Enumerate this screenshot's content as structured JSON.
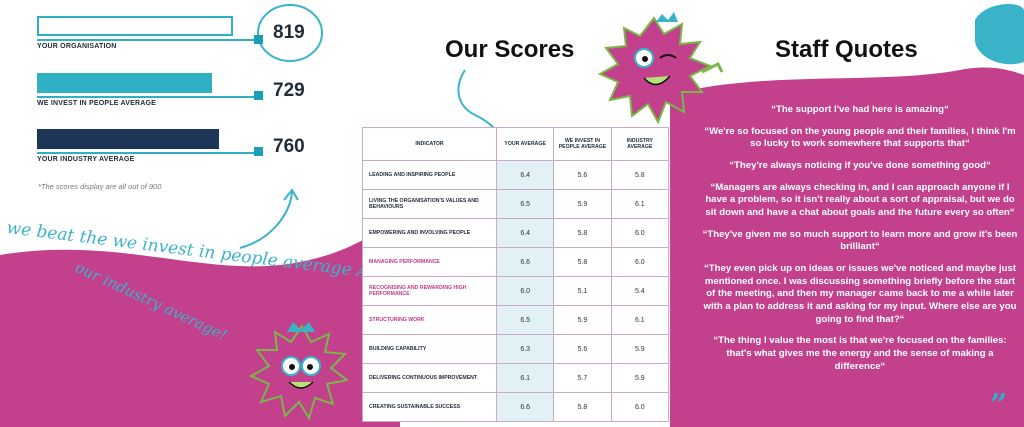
{
  "scores": {
    "items": [
      {
        "label": "YOUR ORGANISATION",
        "value": "819"
      },
      {
        "label": "WE INVEST IN PEOPLE AVERAGE",
        "value": "729"
      },
      {
        "label": "YOUR INDUSTRY AVERAGE",
        "value": "760"
      }
    ],
    "note": "*The scores display are all out of 900"
  },
  "script_text": {
    "line1": "we beat the we invest in people average AND",
    "line2": "our industry average!"
  },
  "our_scores": {
    "heading": "Our Scores",
    "columns": [
      "INDICATOR",
      "YOUR AVERAGE",
      "WE INVEST IN PEOPLE AVERAGE",
      "INDUSTRY AVERAGE"
    ],
    "rows": [
      {
        "indicator": "LEADING AND INSPIRING PEOPLE",
        "yours": "6.4",
        "wiip": "5.6",
        "industry": "5.8"
      },
      {
        "indicator": "LIVING THE ORGANISATION'S VALUES AND BEHAVIOURS",
        "yours": "6.5",
        "wiip": "5.9",
        "industry": "6.1"
      },
      {
        "indicator": "EMPOWERING AND INVOLVING PEOPLE",
        "yours": "6.4",
        "wiip": "5.8",
        "industry": "6.0"
      },
      {
        "indicator": "MANAGING PERFORMANCE",
        "yours": "6.6",
        "wiip": "5.8",
        "industry": "6.0"
      },
      {
        "indicator": "RECOGNISING AND REWARDING HIGH PERFORMANCE",
        "yours": "6.0",
        "wiip": "5.1",
        "industry": "5.4"
      },
      {
        "indicator": "STRUCTURING WORK",
        "yours": "6.5",
        "wiip": "5.9",
        "industry": "6.1"
      },
      {
        "indicator": "BUILDING CAPABILITY",
        "yours": "6.3",
        "wiip": "5.6",
        "industry": "5.9"
      },
      {
        "indicator": "DELIVERING CONTINUOUS IMPROVEMENT",
        "yours": "6.1",
        "wiip": "5.7",
        "industry": "5.9"
      },
      {
        "indicator": "CREATING SUSTAINABLE SUCCESS",
        "yours": "6.6",
        "wiip": "5.8",
        "industry": "6.0"
      }
    ]
  },
  "staff_quotes": {
    "heading": "Staff Quotes",
    "quotes": [
      "“The support I've had here is amazing“",
      "“We're so focused on the young people and their families, I think I'm so lucky to work somewhere that supports that“",
      "“They're always noticing if you've done something good“",
      "“Managers are always checking in, and I can approach anyone if I have a problem, so it isn't really about a sort of appraisal, but we do sit down and have a chat about goals and the future every so often“",
      "“They've given me so much support to learn more and grow it's been brilliant“",
      "“They even pick up on ideas or issues we've noticed and maybe just mentioned once. I was discussing something briefly before the start of the meeting, and then my manager came back to me a while later with a plan to address it and asking for my input. Where else are you going to find that?“",
      "“The thing I value the most is that we're focused on the families: that's what gives me the energy and the sense of making a difference“"
    ]
  },
  "colors": {
    "pink": "#c2408c",
    "teal": "#2fb0c4",
    "navy": "#1d3557"
  }
}
